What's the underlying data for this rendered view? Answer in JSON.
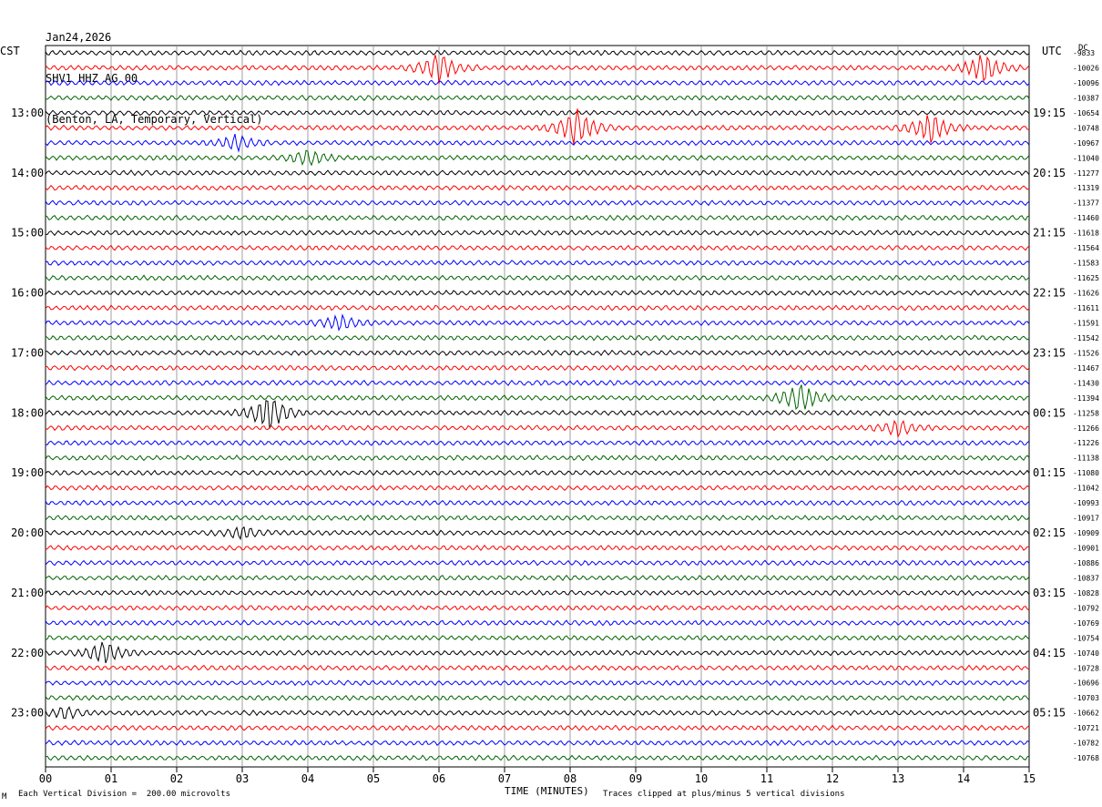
{
  "header": {
    "date": "Jan24,2026",
    "station": "SHV1 HHZ AG 00",
    "location": "(Benton, LA, Temporary, Vertical)"
  },
  "left_tz": "CST",
  "right_tz": "UTC",
  "dc_label": "DC",
  "footer": {
    "scale": "Each Vertical Division =  200.00 microvolts",
    "xlabel": "TIME (MINUTES)",
    "clip": "Traces clipped at plus/minus 5 vertical divisions",
    "mark": "M"
  },
  "colors": {
    "cycle": [
      "#000000",
      "#ff0000",
      "#0000ff",
      "#006400"
    ]
  },
  "chart_data": {
    "type": "line",
    "title": "SHV1 HHZ AG 00",
    "xlabel": "TIME (MINUTES)",
    "ylabel": "",
    "xlim": [
      0,
      15
    ],
    "x_ticks": [
      "00",
      "01",
      "02",
      "03",
      "04",
      "05",
      "06",
      "07",
      "08",
      "09",
      "10",
      "11",
      "12",
      "13",
      "14",
      "15"
    ],
    "left_hour_labels": [
      "13:00",
      "14:00",
      "15:00",
      "16:00",
      "17:00",
      "18:00",
      "19:00",
      "20:00",
      "21:00",
      "22:00",
      "23:00"
    ],
    "right_hour_labels": [
      "19:15",
      "20:15",
      "21:15",
      "22:15",
      "23:15",
      "00:15",
      "01:15",
      "02:15",
      "03:15",
      "04:15",
      "05:15"
    ],
    "trace_count": 48,
    "dc_offsets": [
      -9833,
      -10026,
      -10096,
      -10387,
      -10654,
      -10748,
      -10967,
      -11040,
      -11277,
      -11319,
      -11377,
      -11460,
      -11618,
      -11564,
      -11583,
      -11625,
      -11626,
      -11611,
      -11591,
      -11542,
      -11526,
      -11467,
      -11430,
      -11394,
      -11258,
      -11266,
      -11226,
      -11138,
      -11080,
      -11042,
      -10993,
      -10917,
      -10909,
      -10901,
      -10886,
      -10837,
      -10828,
      -10792,
      -10769,
      -10754,
      -10740,
      -10728,
      -10696,
      -10703,
      -10662,
      -10721,
      -10782,
      -10768
    ],
    "events": [
      {
        "trace": 1,
        "minute": 6.0,
        "amplitude": 4
      },
      {
        "trace": 1,
        "minute": 14.3,
        "amplitude": 4
      },
      {
        "trace": 5,
        "minute": 8.1,
        "amplitude": 5
      },
      {
        "trace": 5,
        "minute": 13.5,
        "amplitude": 4
      },
      {
        "trace": 6,
        "minute": 2.9,
        "amplitude": 2
      },
      {
        "trace": 7,
        "minute": 4.0,
        "amplitude": 2
      },
      {
        "trace": 18,
        "minute": 4.5,
        "amplitude": 2
      },
      {
        "trace": 23,
        "minute": 11.5,
        "amplitude": 4
      },
      {
        "trace": 24,
        "minute": 3.4,
        "amplitude": 5
      },
      {
        "trace": 25,
        "minute": 13.0,
        "amplitude": 2
      },
      {
        "trace": 32,
        "minute": 3.0,
        "amplitude": 1.5
      },
      {
        "trace": 40,
        "minute": 0.9,
        "amplitude": 3
      },
      {
        "trace": 44,
        "minute": 0.3,
        "amplitude": 1.5
      }
    ]
  }
}
